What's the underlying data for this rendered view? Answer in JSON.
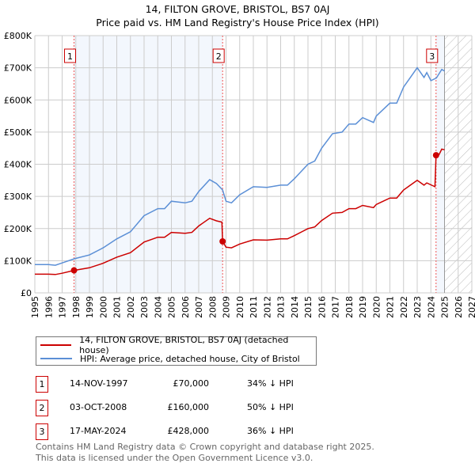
{
  "chart_data": {
    "type": "line",
    "title": "14, FILTON GROVE, BRISTOL, BS7 0AJ",
    "subtitle": "Price paid vs. HM Land Registry's House Price Index (HPI)",
    "xlim": [
      1995,
      2027
    ],
    "ylim": [
      0,
      800000
    ],
    "x_ticks": [
      "1995",
      "1996",
      "1997",
      "1998",
      "1999",
      "2000",
      "2001",
      "2002",
      "2003",
      "2004",
      "2005",
      "2006",
      "2007",
      "2008",
      "2009",
      "2010",
      "2011",
      "2012",
      "2013",
      "2014",
      "2015",
      "2016",
      "2017",
      "2018",
      "2019",
      "2020",
      "2021",
      "2022",
      "2023",
      "2024",
      "2025",
      "2026",
      "2027"
    ],
    "y_ticks": [
      {
        "v": 0,
        "label": "£0"
      },
      {
        "v": 100000,
        "label": "£100K"
      },
      {
        "v": 200000,
        "label": "£200K"
      },
      {
        "v": 300000,
        "label": "£300K"
      },
      {
        "v": 400000,
        "label": "£400K"
      },
      {
        "v": 500000,
        "label": "£500K"
      },
      {
        "v": 600000,
        "label": "£600K"
      },
      {
        "v": 700000,
        "label": "£700K"
      },
      {
        "v": 800000,
        "label": "£800K"
      }
    ],
    "grid": true,
    "forecast_start": 2025,
    "series": [
      {
        "name": "14, FILTON GROVE, BRISTOL, BS7 0AJ (detached house)",
        "color": "#cc0000",
        "x": [
          1995,
          1996,
          1996.5,
          1997,
          1997.87,
          1999,
          2000,
          2001,
          2002,
          2003,
          2004,
          2004.5,
          2005,
          2006,
          2006.5,
          2007,
          2007.8,
          2008.3,
          2008.7,
          2008.75,
          2009,
          2009.4,
          2010,
          2011,
          2012,
          2013,
          2013.5,
          2014,
          2015,
          2015.5,
          2016,
          2016.8,
          2017.5,
          2018,
          2018.5,
          2019,
          2019.8,
          2020,
          2021,
          2021.5,
          2022,
          2022.5,
          2023,
          2023.5,
          2023.7,
          2024.3,
          2024.38,
          2024.6,
          2024.8,
          2025
        ],
        "y": [
          58,
          58,
          57,
          61,
          70,
          78,
          92,
          111,
          125,
          158,
          173,
          173,
          188,
          185,
          188,
          208,
          232,
          224,
          220,
          160,
          142,
          140,
          152,
          165,
          164,
          168,
          168,
          178,
          200,
          205,
          225,
          248,
          250,
          262,
          262,
          272,
          265,
          275,
          295,
          295,
          320,
          335,
          350,
          335,
          342,
          330,
          428,
          430,
          447,
          445
        ]
      },
      {
        "name": "HPI: Average price, detached house, City of Bristol",
        "color": "#5b8fd6",
        "x": [
          1995,
          1996,
          1996.5,
          1997,
          1997.9,
          1999,
          2000,
          2001,
          2002,
          2003,
          2004,
          2004.5,
          2005,
          2006,
          2006.5,
          2007,
          2007.8,
          2008.3,
          2008.75,
          2009,
          2009.4,
          2010,
          2011,
          2012,
          2013,
          2013.5,
          2014,
          2015,
          2015.5,
          2016,
          2016.8,
          2017.5,
          2018,
          2018.5,
          2019,
          2019.8,
          2020,
          2021,
          2021.5,
          2022,
          2022.5,
          2023,
          2023.5,
          2023.7,
          2024,
          2024.4,
          2024.8,
          2025
        ],
        "y": [
          88,
          88,
          86,
          93,
          106,
          118,
          140,
          168,
          190,
          240,
          262,
          262,
          285,
          280,
          285,
          315,
          352,
          340,
          320,
          285,
          280,
          305,
          330,
          328,
          335,
          335,
          355,
          400,
          410,
          450,
          495,
          500,
          525,
          525,
          545,
          530,
          550,
          590,
          590,
          640,
          670,
          700,
          670,
          685,
          660,
          668,
          695,
          690
        ]
      }
    ],
    "y_unit": "thousands GBP",
    "sales": [
      {
        "n": "1",
        "x": 1997.87,
        "price": 70000,
        "date": "14-NOV-1997",
        "price_label": "£70,000",
        "hpi": "34% ↓ HPI"
      },
      {
        "n": "2",
        "x": 2008.75,
        "price": 160000,
        "date": "03-OCT-2008",
        "price_label": "£160,000",
        "hpi": "50% ↓ HPI"
      },
      {
        "n": "3",
        "x": 2024.38,
        "price": 428000,
        "date": "17-MAY-2024",
        "price_label": "£428,000",
        "hpi": "36% ↓ HPI"
      }
    ]
  },
  "footer": {
    "line1": "Contains HM Land Registry data © Crown copyright and database right 2025.",
    "line2": "This data is licensed under the Open Government Licence v3.0."
  }
}
